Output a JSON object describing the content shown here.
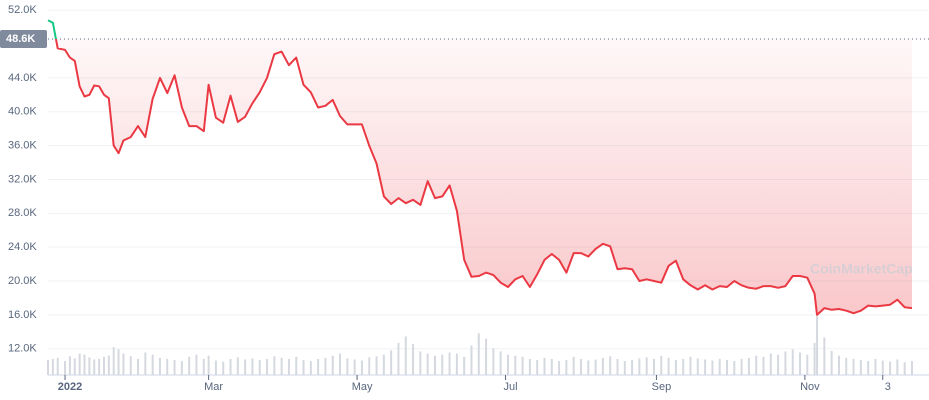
{
  "chart_data": {
    "type": "line",
    "watermark": "CoinMarketCap",
    "baseline": {
      "value": 48600,
      "label": "48.6K"
    },
    "up_color": "#16c784",
    "down_color": "#ea3943",
    "grid": true,
    "xlim": [
      -7,
      355
    ],
    "ylim": [
      8900,
      53200
    ],
    "y2lim": [
      0,
      700
    ],
    "xticks": [
      {
        "value": 0,
        "label": "2022"
      },
      {
        "value": 59,
        "label": "Mar"
      },
      {
        "value": 120,
        "label": "May"
      },
      {
        "value": 181,
        "label": "Jul"
      },
      {
        "value": 243,
        "label": "Sep"
      },
      {
        "value": 304,
        "label": "Nov"
      },
      {
        "value": 336,
        "label": "3"
      }
    ],
    "yticks": [
      {
        "value": 52000,
        "label": "52.0K"
      },
      {
        "value": 44000,
        "label": "44.0K"
      },
      {
        "value": 40000,
        "label": "40.0K"
      },
      {
        "value": 36000,
        "label": "36.0K"
      },
      {
        "value": 32000,
        "label": "32.0K"
      },
      {
        "value": 28000,
        "label": "28.0K"
      },
      {
        "value": 24000,
        "label": "24.0K"
      },
      {
        "value": 20000,
        "label": "20.0K"
      },
      {
        "value": 16000,
        "label": "16.0K"
      },
      {
        "value": 12000,
        "label": "12.0K"
      }
    ],
    "x": [
      -7,
      -5,
      -3,
      0,
      2,
      4,
      6,
      8,
      10,
      12,
      14,
      16,
      18,
      20,
      22,
      24,
      27,
      30,
      33,
      36,
      39,
      42,
      45,
      48,
      51,
      54,
      57,
      59,
      62,
      65,
      68,
      71,
      74,
      77,
      80,
      83,
      86,
      89,
      92,
      95,
      98,
      101,
      104,
      107,
      110,
      113,
      116,
      119,
      122,
      125,
      128,
      131,
      134,
      137,
      140,
      143,
      146,
      149,
      152,
      155,
      158,
      161,
      164,
      167,
      170,
      173,
      176,
      179,
      182,
      185,
      188,
      191,
      194,
      197,
      200,
      203,
      206,
      209,
      212,
      215,
      218,
      221,
      224,
      227,
      230,
      233,
      236,
      239,
      242,
      245,
      248,
      251,
      254,
      257,
      260,
      263,
      266,
      269,
      272,
      275,
      278,
      281,
      284,
      287,
      290,
      293,
      296,
      299,
      302,
      305,
      308,
      309,
      312,
      315,
      318,
      321,
      324,
      327,
      330,
      333,
      336,
      339,
      342,
      345,
      348
    ],
    "series": [
      {
        "color": "#ea3943",
        "values": [
          50800,
          50500,
          47500,
          47300,
          46400,
          46000,
          43000,
          41800,
          42000,
          43100,
          43000,
          42000,
          41600,
          36000,
          35100,
          36600,
          37000,
          38300,
          37000,
          41500,
          44000,
          42200,
          44300,
          40500,
          38300,
          38300,
          37700,
          43200,
          39300,
          38700,
          41900,
          38800,
          39400,
          41000,
          42300,
          44000,
          46800,
          47100,
          45500,
          46400,
          43200,
          42300,
          40500,
          40700,
          41400,
          39500,
          38500,
          38500,
          38500,
          36000,
          33900,
          30000,
          29100,
          29800,
          29200,
          29600,
          29000,
          31800,
          29800,
          30000,
          31300,
          28300,
          22500,
          20500,
          20600,
          21000,
          20700,
          19800,
          19300,
          20200,
          20600,
          19300,
          20800,
          22500,
          23200,
          22500,
          21000,
          23300,
          23300,
          22900,
          23800,
          24400,
          24100,
          21400,
          21500,
          21400,
          20000,
          20200,
          20000,
          19800,
          21800,
          22400,
          20200,
          19500,
          19000,
          19500,
          19000,
          19400,
          19300,
          20000,
          19500,
          19200,
          19100,
          19400,
          19400,
          19200,
          19400,
          20600,
          20600,
          20400,
          18500,
          16000,
          16800,
          16600,
          16700,
          16500,
          16200,
          16500,
          17100,
          17000,
          17100,
          17200,
          17800,
          16900,
          16800
        ]
      },
      {
        "color": "#d5d9df",
        "axis": "y2",
        "type": "bar",
        "values": [
          28,
          30,
          32,
          26,
          35,
          31,
          40,
          38,
          33,
          29,
          30,
          34,
          36,
          52,
          48,
          40,
          35,
          30,
          42,
          38,
          32,
          30,
          28,
          26,
          34,
          38,
          30,
          36,
          27,
          25,
          30,
          33,
          29,
          31,
          28,
          30,
          35,
          32,
          30,
          34,
          28,
          26,
          30,
          32,
          36,
          40,
          31,
          29,
          27,
          33,
          35,
          38,
          46,
          60,
          72,
          58,
          44,
          40,
          36,
          38,
          42,
          40,
          34,
          55,
          78,
          68,
          50,
          44,
          38,
          36,
          34,
          30,
          28,
          32,
          30,
          26,
          28,
          34,
          30,
          27,
          29,
          32,
          35,
          30,
          26,
          28,
          31,
          33,
          30,
          36,
          32,
          28,
          30,
          34,
          31,
          29,
          27,
          30,
          28,
          26,
          30,
          32,
          36,
          34,
          40,
          38,
          44,
          48,
          42,
          38,
          60,
          110,
          70,
          45,
          36,
          32,
          30,
          28,
          26,
          30,
          27,
          25,
          29,
          24,
          26
        ]
      }
    ]
  }
}
